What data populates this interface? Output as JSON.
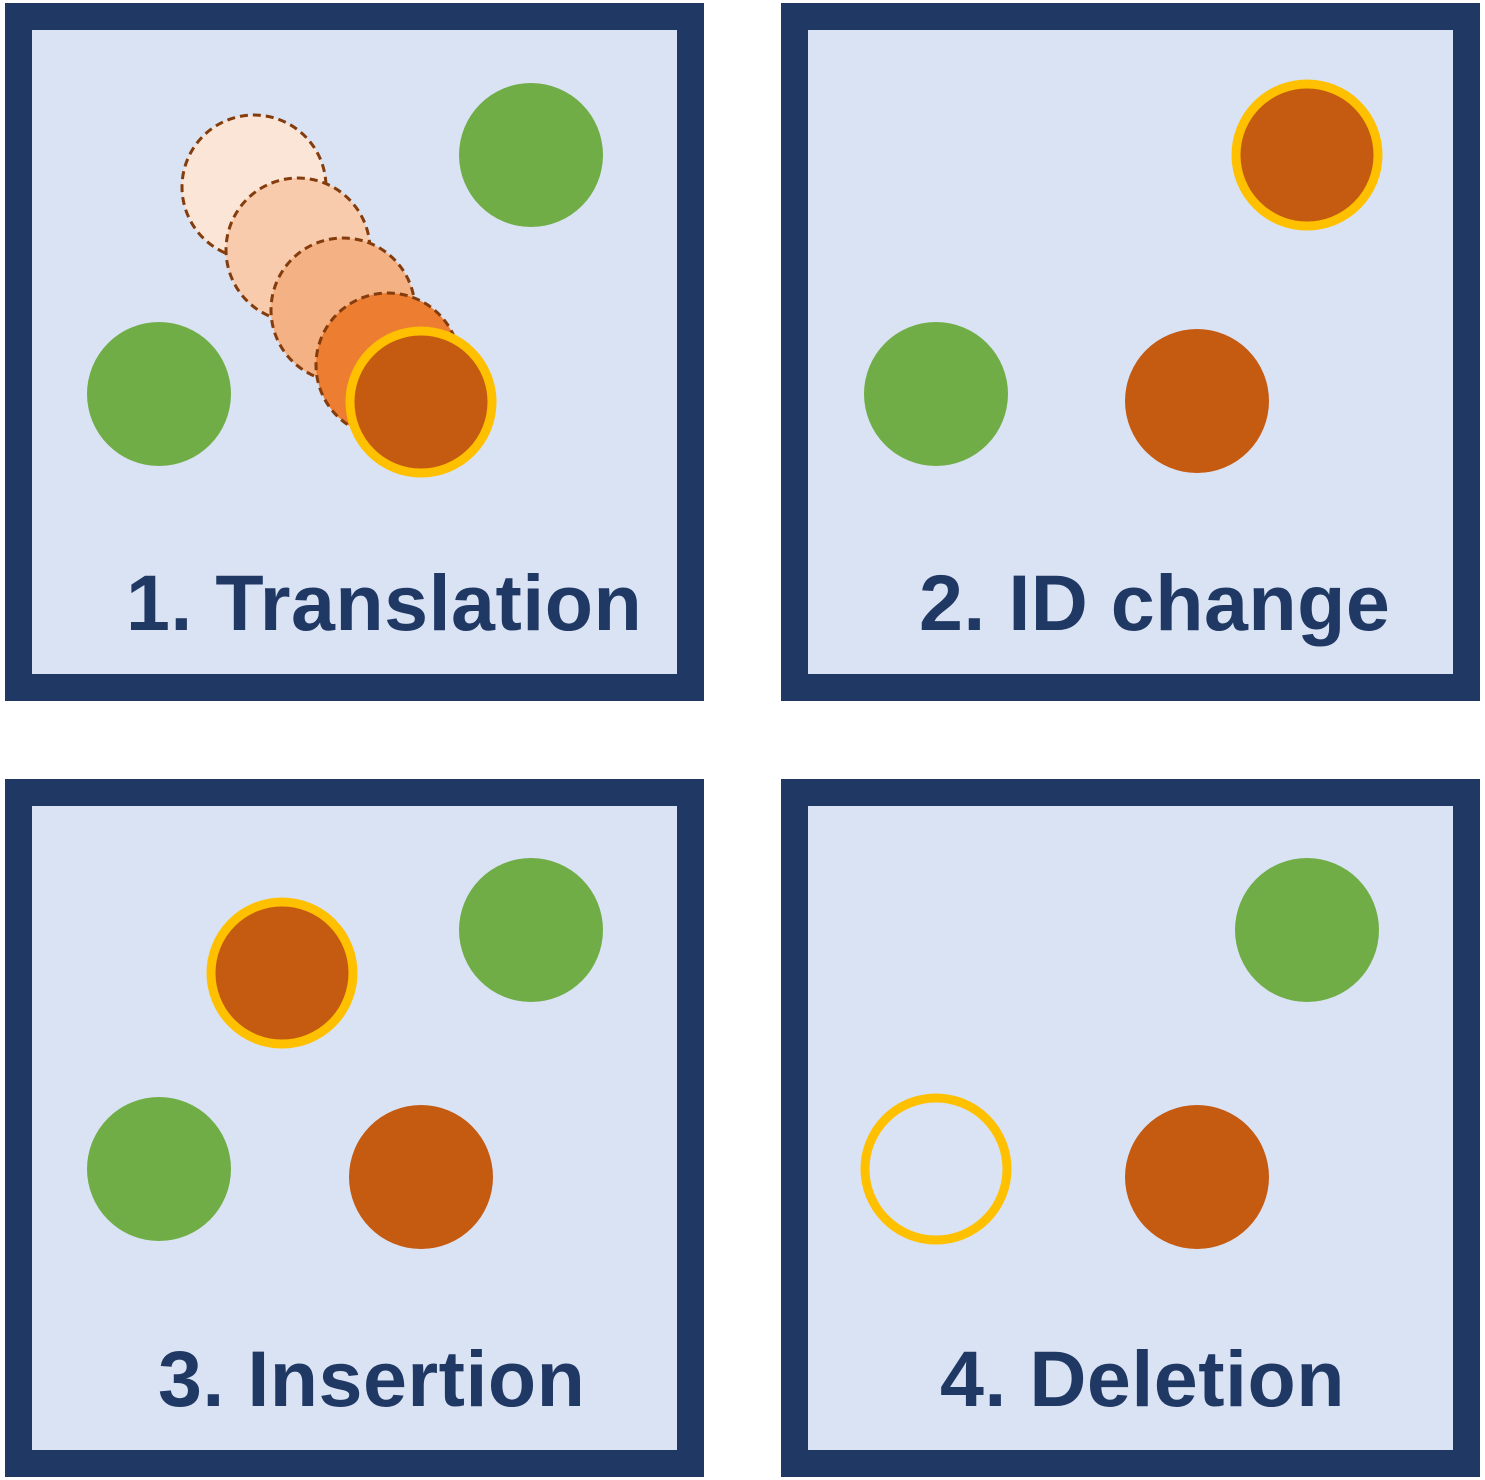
{
  "colors": {
    "frame": "#203864",
    "panel_background": "#dae3f3",
    "green_object": "#70ad47",
    "orange_object": "#c55a11",
    "highlight_ring": "#ffc000",
    "ghost_outline": "#843c0c",
    "ghost_fill_1": "#fbe5d6",
    "ghost_fill_2": "#f8cbad",
    "ghost_fill_3": "#f4b183",
    "ghost_fill_4": "#ed7d31"
  },
  "panels": [
    {
      "label": "1. Translation"
    },
    {
      "label": "2. ID change"
    },
    {
      "label": "3. Insertion"
    },
    {
      "label": "4. Deletion"
    }
  ]
}
